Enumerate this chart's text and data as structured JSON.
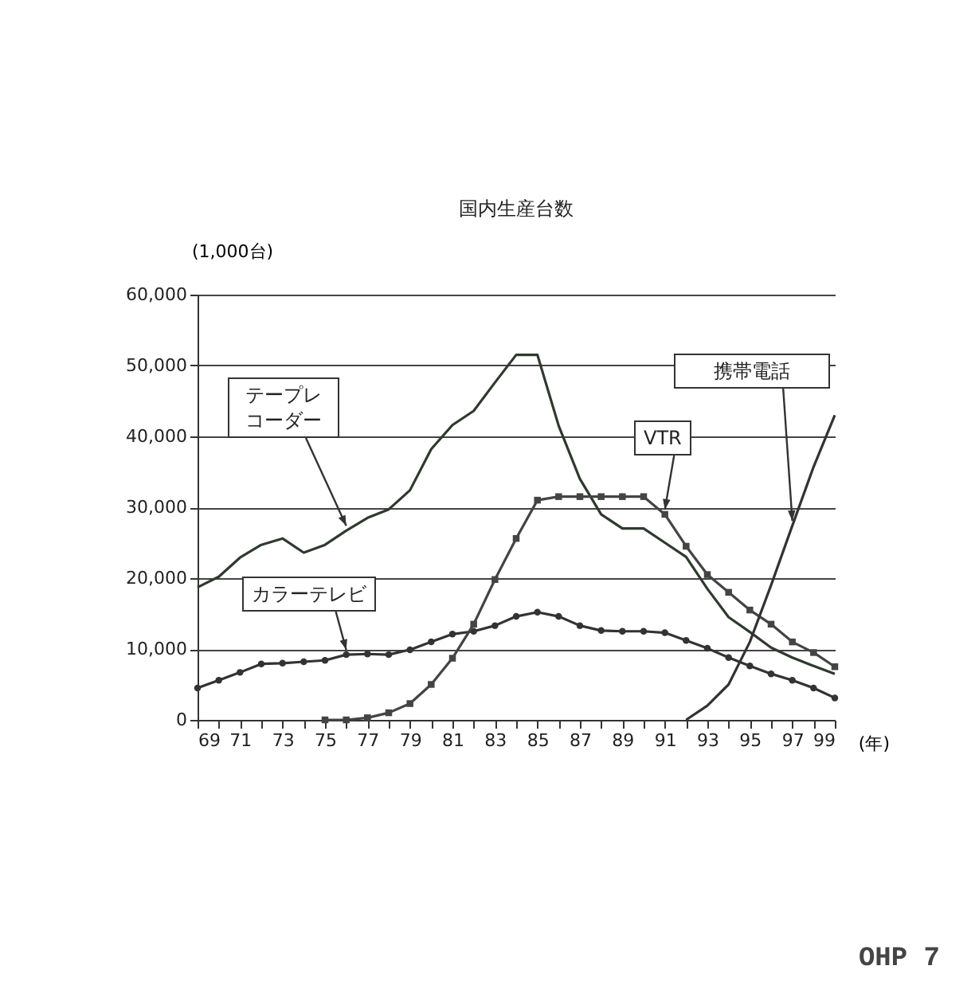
{
  "chart_data": {
    "type": "line",
    "title": "国内生産台数",
    "ylabel": "(1,000台)",
    "xlabel": "(年)",
    "x": [
      69,
      70,
      71,
      72,
      73,
      74,
      75,
      76,
      77,
      78,
      79,
      80,
      81,
      82,
      83,
      84,
      85,
      86,
      87,
      88,
      89,
      90,
      91,
      92,
      93,
      94,
      95,
      96,
      97,
      98,
      99
    ],
    "series": [
      {
        "name": "テープレコーダー",
        "color": "#2e3a2e",
        "marker": "none",
        "values": [
          18700,
          20200,
          22900,
          24700,
          25600,
          23600,
          24700,
          26700,
          28500,
          29700,
          32400,
          38200,
          41600,
          43600,
          47600,
          51500,
          51500,
          41500,
          34000,
          29000,
          27000,
          27000,
          25000,
          23000,
          18500,
          14500,
          12400,
          10200,
          8800,
          7600,
          6500
        ]
      },
      {
        "name": "カラーテレビ",
        "color": "#333333",
        "marker": "circle",
        "values": [
          4500,
          5600,
          6700,
          7900,
          8000,
          8200,
          8400,
          9200,
          9300,
          9200,
          9900,
          11000,
          12100,
          12500,
          13300,
          14600,
          15200,
          14600,
          13300,
          12600,
          12500,
          12500,
          12300,
          11200,
          10100,
          8800,
          7600,
          6500,
          5600,
          4500,
          3100
        ]
      },
      {
        "name": "VTR",
        "color": "#444444",
        "marker": "square",
        "x": [
          75,
          76,
          77,
          78,
          79,
          80,
          81,
          82,
          83,
          84,
          85,
          86,
          87,
          88,
          89,
          90,
          91,
          92,
          93,
          94,
          95,
          96,
          97,
          98,
          99
        ],
        "values": [
          0,
          0,
          300,
          1000,
          2300,
          5000,
          8700,
          13500,
          19800,
          25600,
          31000,
          31500,
          31500,
          31500,
          31500,
          31500,
          29000,
          24500,
          20500,
          18000,
          15500,
          13500,
          11000,
          9500,
          7500
        ]
      },
      {
        "name": "携帯電話",
        "color": "#333333",
        "marker": "none",
        "x": [
          92,
          93,
          94,
          95,
          96,
          97,
          98,
          99
        ],
        "values": [
          0,
          2000,
          5000,
          11000,
          19000,
          27400,
          35700,
          43000
        ]
      }
    ],
    "xlim": [
      69,
      99
    ],
    "xticks": [
      69,
      {
        "value": 70,
        "label": null
      },
      71,
      {
        "value": 72,
        "label": null
      },
      73,
      {
        "value": 74,
        "label": null
      },
      75,
      {
        "value": 76,
        "label": null
      },
      77,
      {
        "value": 78,
        "label": null
      },
      79,
      {
        "value": 80,
        "label": null
      },
      81,
      {
        "value": 82,
        "label": null
      },
      83,
      {
        "value": 84,
        "label": null
      },
      85,
      {
        "value": 86,
        "label": null
      },
      87,
      {
        "value": 88,
        "label": null
      },
      89,
      {
        "value": 90,
        "label": null
      },
      91,
      {
        "value": 92,
        "label": null
      },
      93,
      {
        "value": 94,
        "label": null
      },
      95,
      {
        "value": 96,
        "label": null
      },
      97,
      {
        "value": 98,
        "label": null
      },
      99
    ],
    "ylim": [
      0,
      60000
    ],
    "yticks": [
      0,
      {
        "value": 10000,
        "label": "10,000"
      },
      {
        "value": 20000,
        "label": "20,000"
      },
      {
        "value": 30000,
        "label": "30,000"
      },
      {
        "value": 40000,
        "label": "40,000"
      },
      {
        "value": 50000,
        "label": "50,000"
      },
      {
        "value": 60000,
        "label": "60,000"
      }
    ],
    "grid": "y",
    "legend": false,
    "line_style": "solid",
    "annotations": [
      "OHP 7"
    ]
  }
}
